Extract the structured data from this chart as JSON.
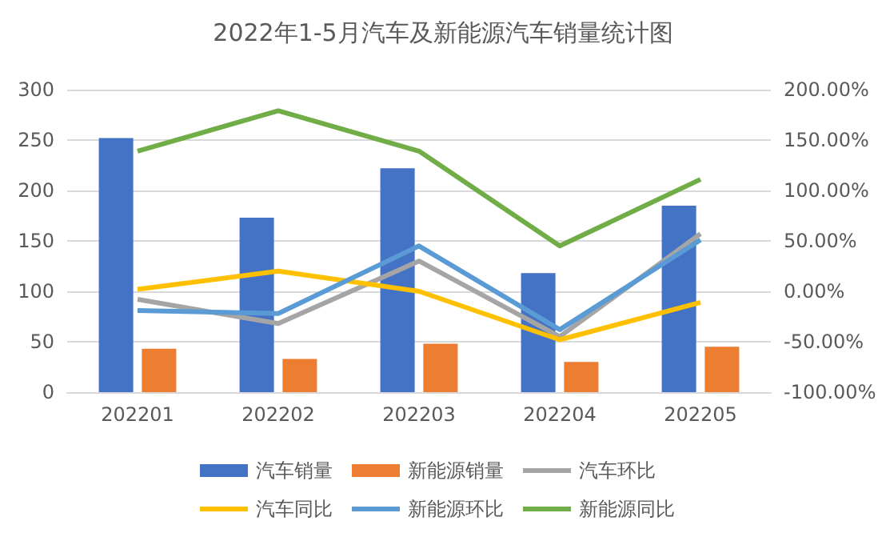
{
  "chart_data": {
    "type": "bar",
    "title": "2022年1-5月汽车及新能源汽车销量统计图",
    "categories": [
      "202201",
      "202202",
      "202203",
      "202204",
      "202205"
    ],
    "series": [
      {
        "name": "汽车销量",
        "color": "#4472c4",
        "values": [
          252,
          173,
          222,
          118,
          185
        ]
      },
      {
        "name": "新能源销量",
        "color": "#ed7d31",
        "values": [
          43,
          33,
          48,
          30,
          45
        ]
      },
      {
        "name": "汽车环比",
        "type": "line",
        "axis": "y2",
        "color": "#a5a5a5",
        "values": [
          -8,
          -32,
          30,
          -45,
          57
        ]
      },
      {
        "name": "汽车同比",
        "type": "line",
        "axis": "y2",
        "color": "#ffc000",
        "values": [
          2,
          20,
          0,
          -48,
          -11
        ]
      },
      {
        "name": "新能源环比",
        "type": "line",
        "axis": "y2",
        "color": "#5b9bd5",
        "values": [
          -19,
          -22,
          45,
          -38,
          51
        ]
      },
      {
        "name": "新能源同比",
        "type": "line",
        "axis": "y2",
        "color": "#70ad47",
        "values": [
          139,
          179,
          139,
          45,
          111
        ]
      }
    ],
    "ylim": [
      0,
      300
    ],
    "yticks": [
      0,
      50,
      100,
      150,
      200,
      250,
      300
    ],
    "y2lim": [
      -100,
      200
    ],
    "y2ticks": [
      {
        "value": -100,
        "label": "-100.00%"
      },
      {
        "value": -50,
        "label": "-50.00%"
      },
      {
        "value": 0,
        "label": "0.00%"
      },
      {
        "value": 50,
        "label": "50.00%"
      },
      {
        "value": 100,
        "label": "100.00%"
      },
      {
        "value": 150,
        "label": "150.00%"
      },
      {
        "value": 200,
        "label": "200.00%"
      }
    ],
    "grid": "y",
    "legend": "bottom",
    "marker": "none"
  }
}
